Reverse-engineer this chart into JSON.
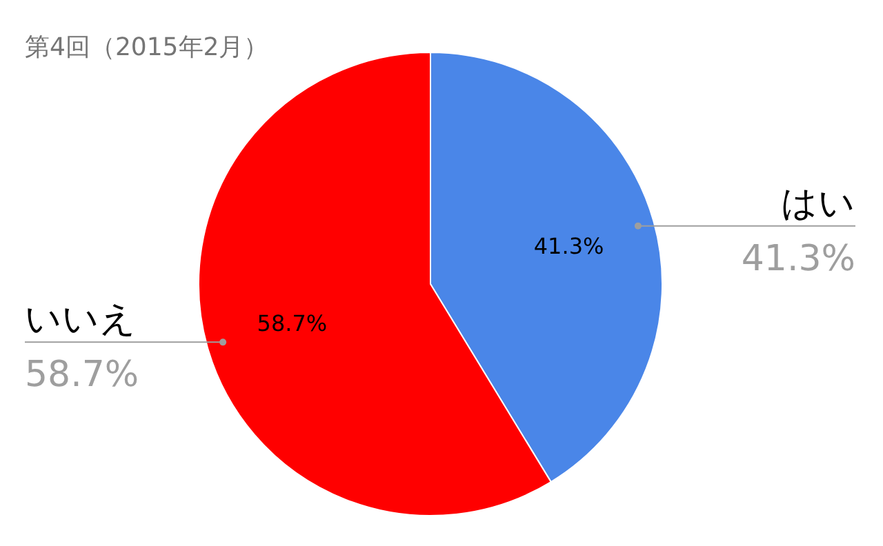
{
  "chart_data": {
    "type": "pie",
    "title": "第4回（2015年2月）",
    "categories": [
      "はい",
      "いいえ"
    ],
    "values": [
      41.3,
      58.7
    ],
    "colors": [
      "#4a86e8",
      "#ff0000"
    ],
    "value_labels": [
      "41.3%",
      "58.7%"
    ]
  }
}
